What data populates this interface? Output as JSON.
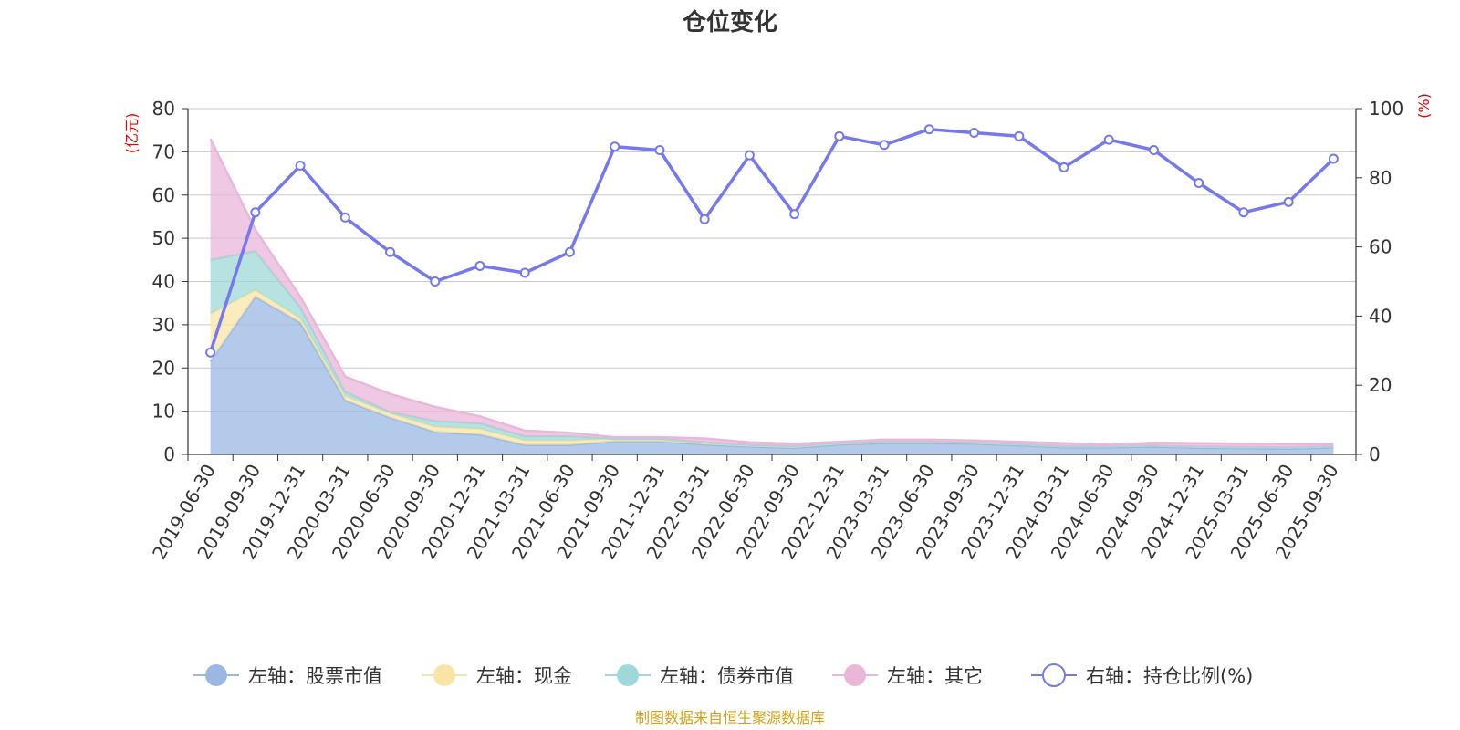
{
  "chart_data": {
    "type": "area",
    "title": "仓位变化",
    "source": "制图数据来自恒生聚源数据库",
    "left_axis": {
      "unit": "(亿元)",
      "ylim": [
        0,
        80
      ],
      "ticks": [
        "0",
        "10",
        "20",
        "30",
        "40",
        "50",
        "60",
        "70",
        "80"
      ]
    },
    "right_axis": {
      "unit": "(%)",
      "ylim": [
        0,
        100
      ],
      "ticks": [
        "0",
        "20",
        "40",
        "60",
        "80",
        "100"
      ]
    },
    "categories": [
      "2019-06-30",
      "2019-09-30",
      "2019-12-31",
      "2020-03-31",
      "2020-06-30",
      "2020-09-30",
      "2020-12-31",
      "2021-03-31",
      "2021-06-30",
      "2021-09-30",
      "2021-12-31",
      "2022-03-31",
      "2022-06-30",
      "2022-09-30",
      "2022-12-31",
      "2023-03-31",
      "2023-06-30",
      "2023-09-30",
      "2023-12-31",
      "2024-03-31",
      "2024-06-30",
      "2024-09-30",
      "2024-12-31",
      "2025-03-31",
      "2025-06-30",
      "2025-09-30"
    ],
    "series": [
      {
        "name": "左轴：股票市值",
        "axis": "left",
        "kind": "area",
        "color": "#9bb8e3",
        "values": [
          21.5,
          36.5,
          30.5,
          12.5,
          8.5,
          5.2,
          4.6,
          2.2,
          2.2,
          3.0,
          3.0,
          2.3,
          1.8,
          1.5,
          2.3,
          2.6,
          2.6,
          2.5,
          2.1,
          1.6,
          1.6,
          1.8,
          1.5,
          1.4,
          1.3,
          1.6
        ]
      },
      {
        "name": "左轴：现金",
        "axis": "left",
        "kind": "area",
        "color": "#f8e5a6",
        "values": [
          11.0,
          1.5,
          1.0,
          1.0,
          1.0,
          1.2,
          1.3,
          1.0,
          1.0,
          0.6,
          0.6,
          0.5,
          0.4,
          0.4,
          0.4,
          0.4,
          0.4,
          0.4,
          0.3,
          0.3,
          0.3,
          0.3,
          0.3,
          0.3,
          0.3,
          0.3
        ]
      },
      {
        "name": "左轴：债券市值",
        "axis": "left",
        "kind": "area",
        "color": "#9ed8d8",
        "values": [
          12.5,
          9.0,
          2.5,
          1.0,
          0.3,
          1.3,
          1.3,
          1.0,
          1.0,
          0,
          0,
          0,
          0,
          0,
          0,
          0,
          0,
          0,
          0,
          0,
          0,
          0,
          0,
          0,
          0,
          0
        ]
      },
      {
        "name": "左轴：其它",
        "axis": "left",
        "kind": "area",
        "color": "#e9b7d9",
        "values": [
          28.0,
          5.0,
          2.5,
          3.5,
          4.2,
          3.3,
          1.6,
          1.3,
          0.8,
          0.4,
          0.4,
          0.9,
          0.6,
          0.6,
          0.2,
          0.4,
          0.4,
          0.3,
          0.5,
          0.7,
          0.4,
          0.6,
          0.8,
          0.8,
          0.8,
          0.5
        ]
      },
      {
        "name": "右轴：持仓比例(%)",
        "axis": "right",
        "kind": "line",
        "color": "#7679ec",
        "values": [
          29.5,
          70.0,
          83.5,
          68.5,
          58.5,
          50.0,
          54.5,
          52.5,
          58.5,
          89.0,
          88.0,
          68.0,
          86.5,
          69.5,
          92.0,
          89.5,
          94.0,
          93.0,
          92.0,
          83.0,
          91.0,
          88.0,
          78.5,
          70.0,
          73.0,
          85.5
        ]
      }
    ]
  }
}
